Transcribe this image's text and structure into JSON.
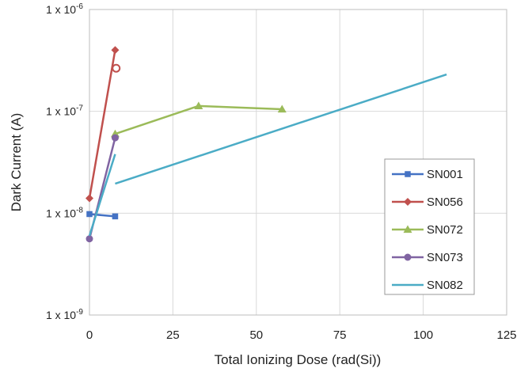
{
  "chart_data": {
    "type": "line",
    "xlabel": "Total Ionizing Dose (rad(Si))",
    "ylabel": "Dark Current (A)",
    "xlim": [
      0,
      125
    ],
    "xticks": [
      0,
      25,
      50,
      75,
      100,
      125
    ],
    "ylim": [
      1e-09,
      1e-06
    ],
    "yscale": "log",
    "yticks": [
      {
        "value": 1e-09,
        "mantissa": "1 x 10",
        "exponent": "-9"
      },
      {
        "value": 1e-08,
        "mantissa": "1 x 10",
        "exponent": "-8"
      },
      {
        "value": 1e-07,
        "mantissa": "1 x 10",
        "exponent": "-7"
      },
      {
        "value": 1e-06,
        "mantissa": "1 x 10",
        "exponent": "-6"
      }
    ],
    "grid": true,
    "legend_position": "right",
    "series": [
      {
        "name": "SN001",
        "color": "#4472C4",
        "marker": "square",
        "x": [
          0,
          7.7
        ],
        "y": [
          9.8e-09,
          9.3e-09
        ]
      },
      {
        "name": "SN056",
        "color": "#C0504D",
        "marker": "diamond",
        "x": [
          0,
          7.7
        ],
        "y": [
          1.4e-08,
          4e-07
        ]
      },
      {
        "name": "SN072",
        "color": "#9BBB59",
        "marker": "triangle",
        "x": [
          7.7,
          32.7,
          57.7
        ],
        "y": [
          6e-08,
          1.13e-07,
          1.05e-07
        ]
      },
      {
        "name": "SN073",
        "color": "#8064A2",
        "marker": "circle",
        "x": [
          0,
          7.7
        ],
        "y": [
          5.6e-09,
          5.5e-08
        ]
      },
      {
        "name": "SN082",
        "color": "#4BACC6",
        "marker": "none",
        "segments": [
          {
            "x": [
              0,
              7.7
            ],
            "y": [
              6e-09,
              3.8e-08
            ]
          },
          {
            "x": [
              7.7,
              107
            ],
            "y": [
              1.95e-08,
              2.3e-07
            ]
          }
        ]
      }
    ],
    "extra_points": [
      {
        "series": "SN056",
        "x": 8,
        "y": 2.65e-07,
        "marker": "open-circle"
      }
    ]
  }
}
